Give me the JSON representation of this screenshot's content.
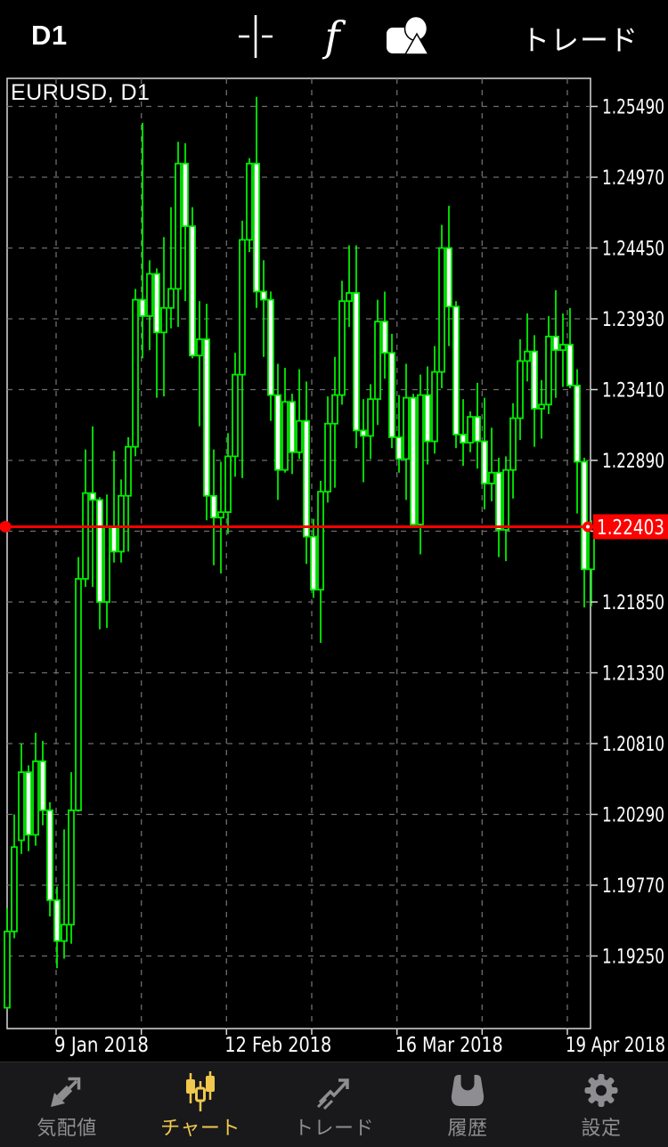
{
  "topbar": {
    "timeframe": "D1",
    "trade_label": "トレード",
    "icons": [
      "crosshair-icon",
      "function-icon",
      "objects-icon"
    ]
  },
  "chart": {
    "symbol_label": "EURUSD, D1",
    "current_price_label": "1.22403"
  },
  "chart_data": {
    "type": "candlestick",
    "title": "EURUSD, D1",
    "symbol": "EURUSD",
    "timeframe": "D1",
    "current_price": 1.22403,
    "grid": true,
    "y_axis_top_value": 1.2549,
    "y_axis_step": 0.0052,
    "y_axis_labels": [
      "1.25490",
      "1.24970",
      "1.24450",
      "1.23930",
      "1.23410",
      "1.22890",
      "1.21850",
      "1.21330",
      "1.20810",
      "1.20290",
      "1.19770",
      "1.19250"
    ],
    "x_axis_labels": [
      "9 Jan 2018",
      "12 Feb 2018",
      "16 Mar 2018",
      "19 Apr 2018"
    ],
    "candles": [
      [
        1.1887,
        1.196,
        1.1886,
        1.1943
      ],
      [
        1.1943,
        1.2029,
        1.1938,
        1.2005
      ],
      [
        1.201,
        1.2081,
        1.2,
        1.206
      ],
      [
        1.206,
        1.2065,
        1.2002,
        1.2014
      ],
      [
        1.2014,
        1.2089,
        1.2006,
        1.2068
      ],
      [
        1.2068,
        1.2083,
        1.2021,
        1.2032
      ],
      [
        1.2032,
        1.2038,
        1.1954,
        1.1966
      ],
      [
        1.1966,
        1.1976,
        1.1916,
        1.1936
      ],
      [
        1.1936,
        1.2018,
        1.1923,
        1.1948
      ],
      [
        1.1948,
        1.206,
        1.1934,
        1.2032
      ],
      [
        1.2032,
        1.2218,
        1.2031,
        1.2202
      ],
      [
        1.2202,
        1.2297,
        1.2196,
        1.2265
      ],
      [
        1.2265,
        1.2314,
        1.2196,
        1.226
      ],
      [
        1.226,
        1.2262,
        1.2165,
        1.2185
      ],
      [
        1.2185,
        1.2264,
        1.2166,
        1.224
      ],
      [
        1.224,
        1.2296,
        1.2214,
        1.2222
      ],
      [
        1.2222,
        1.2275,
        1.2214,
        1.2263
      ],
      [
        1.2263,
        1.2306,
        1.2222,
        1.2299
      ],
      [
        1.2299,
        1.2415,
        1.2292,
        1.2407
      ],
      [
        1.2407,
        1.2537,
        1.2364,
        1.2395
      ],
      [
        1.2395,
        1.2436,
        1.237,
        1.2426
      ],
      [
        1.2426,
        1.243,
        1.2335,
        1.2383
      ],
      [
        1.2383,
        1.2453,
        1.2336,
        1.2401
      ],
      [
        1.2401,
        1.2475,
        1.2386,
        1.2415
      ],
      [
        1.2415,
        1.2523,
        1.2387,
        1.2507
      ],
      [
        1.2507,
        1.2522,
        1.2406,
        1.2461
      ],
      [
        1.2461,
        1.2475,
        1.2364,
        1.2366
      ],
      [
        1.2366,
        1.2406,
        1.2314,
        1.2378
      ],
      [
        1.2378,
        1.2404,
        1.2245,
        1.2263
      ],
      [
        1.2263,
        1.2297,
        1.2212,
        1.2247
      ],
      [
        1.2247,
        1.2288,
        1.2206,
        1.2251
      ],
      [
        1.2251,
        1.2309,
        1.2235,
        1.2292
      ],
      [
        1.2292,
        1.2368,
        1.2277,
        1.2352
      ],
      [
        1.2352,
        1.2465,
        1.2276,
        1.2451
      ],
      [
        1.2451,
        1.2511,
        1.2442,
        1.2507
      ],
      [
        1.2507,
        1.2556,
        1.2401,
        1.2413
      ],
      [
        1.2413,
        1.2436,
        1.2365,
        1.2407
      ],
      [
        1.2407,
        1.2413,
        1.2318,
        1.2337
      ],
      [
        1.2337,
        1.236,
        1.226,
        1.2282
      ],
      [
        1.2282,
        1.2357,
        1.228,
        1.2332
      ],
      [
        1.2332,
        1.2338,
        1.2279,
        1.2295
      ],
      [
        1.2295,
        1.2356,
        1.229,
        1.2318
      ],
      [
        1.2318,
        1.2347,
        1.2213,
        1.2233
      ],
      [
        1.2233,
        1.2246,
        1.2188,
        1.2194
      ],
      [
        1.2194,
        1.2274,
        1.2155,
        1.2266
      ],
      [
        1.2266,
        1.2336,
        1.2258,
        1.2316
      ],
      [
        1.2316,
        1.2365,
        1.2269,
        1.2337
      ],
      [
        1.2337,
        1.2421,
        1.233,
        1.2406
      ],
      [
        1.2406,
        1.2447,
        1.2387,
        1.2412
      ],
      [
        1.2412,
        1.2447,
        1.2298,
        1.2311
      ],
      [
        1.2311,
        1.2334,
        1.2273,
        1.2307
      ],
      [
        1.2307,
        1.2345,
        1.229,
        1.2334
      ],
      [
        1.2334,
        1.2407,
        1.2315,
        1.2391
      ],
      [
        1.2391,
        1.2413,
        1.2349,
        1.2368
      ],
      [
        1.2368,
        1.2382,
        1.2298,
        1.2306
      ],
      [
        1.2306,
        1.2337,
        1.228,
        1.229
      ],
      [
        1.229,
        1.236,
        1.226,
        1.2335
      ],
      [
        1.2335,
        1.2338,
        1.224,
        1.2242
      ],
      [
        1.2242,
        1.2352,
        1.222,
        1.2337
      ],
      [
        1.2337,
        1.2358,
        1.2286,
        1.2303
      ],
      [
        1.2303,
        1.2373,
        1.2294,
        1.2354
      ],
      [
        1.2354,
        1.2462,
        1.2342,
        1.2445
      ],
      [
        1.2445,
        1.2476,
        1.2373,
        1.2402
      ],
      [
        1.2402,
        1.2406,
        1.2298,
        1.2308
      ],
      [
        1.2308,
        1.2334,
        1.2285,
        1.2302
      ],
      [
        1.2302,
        1.2325,
        1.2295,
        1.2321
      ],
      [
        1.2321,
        1.2346,
        1.2283,
        1.2303
      ],
      [
        1.2303,
        1.2335,
        1.2253,
        1.2272
      ],
      [
        1.2272,
        1.2313,
        1.2259,
        1.228
      ],
      [
        1.228,
        1.2291,
        1.2218,
        1.2238
      ],
      [
        1.2238,
        1.2292,
        1.2215,
        1.2282
      ],
      [
        1.2282,
        1.2331,
        1.2261,
        1.232
      ],
      [
        1.232,
        1.2378,
        1.2304,
        1.2362
      ],
      [
        1.2362,
        1.2397,
        1.2347,
        1.2369
      ],
      [
        1.2369,
        1.2381,
        1.2299,
        1.2327
      ],
      [
        1.2327,
        1.2348,
        1.2305,
        1.233
      ],
      [
        1.233,
        1.2395,
        1.2323,
        1.238
      ],
      [
        1.238,
        1.2414,
        1.2335,
        1.237
      ],
      [
        1.237,
        1.2397,
        1.2343,
        1.2374
      ],
      [
        1.2374,
        1.2401,
        1.2342,
        1.2344
      ],
      [
        1.2344,
        1.2356,
        1.225,
        1.2288
      ],
      [
        1.2288,
        1.2291,
        1.2181,
        1.2209
      ],
      [
        1.2209,
        1.2245,
        1.2182,
        1.224
      ]
    ],
    "colors": {
      "up_fill": "#000000",
      "down_fill": "#ffffff",
      "outline": "#00ee00",
      "price_line": "#ff0000",
      "grid": "#6e6e6e",
      "border": "#d9d9d9",
      "axis_text": "#ffffff",
      "accent_active": "#f0c84e",
      "tab_inactive": "#8e8e92"
    }
  },
  "tabbar": {
    "items": [
      {
        "id": "quotes",
        "label": "気配値",
        "active": false
      },
      {
        "id": "chart",
        "label": "チャート",
        "active": true
      },
      {
        "id": "trade",
        "label": "トレード",
        "active": false
      },
      {
        "id": "history",
        "label": "履歴",
        "active": false
      },
      {
        "id": "settings",
        "label": "設定",
        "active": false
      }
    ]
  }
}
